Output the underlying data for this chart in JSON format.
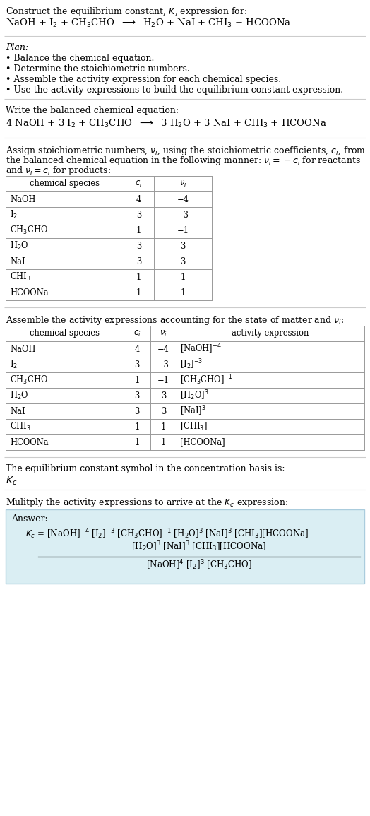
{
  "bg_color": "#ffffff",
  "text_color": "#000000",
  "title_line1": "Construct the equilibrium constant, $K$, expression for:",
  "reaction_unbalanced": "NaOH + I$_2$ + CH$_3$CHO  $\\longrightarrow$  H$_2$O + NaI + CHI$_3$ + HCOONa",
  "plan_header": "Plan:",
  "plan_items": [
    "\\u2022 Balance the chemical equation.",
    "\\u2022 Determine the stoichiometric numbers.",
    "\\u2022 Assemble the activity expression for each chemical species.",
    "\\u2022 Use the activity expressions to build the equilibrium constant expression."
  ],
  "balanced_header": "Write the balanced chemical equation:",
  "reaction_balanced": "4 NaOH + 3 I$_2$ + CH$_3$CHO  $\\longrightarrow$  3 H$_2$O + 3 NaI + CHI$_3$ + HCOONa",
  "stoich_intro1": "Assign stoichiometric numbers, $\\nu_i$, using the stoichiometric coefficients, $c_i$, from",
  "stoich_intro2": "the balanced chemical equation in the following manner: $\\nu_i = -c_i$ for reactants",
  "stoich_intro3": "and $\\nu_i = c_i$ for products:",
  "table1_headers": [
    "chemical species",
    "$c_i$",
    "$\\nu_i$"
  ],
  "table1_data": [
    [
      "NaOH",
      "4",
      "\\u22124"
    ],
    [
      "I$_2$",
      "3",
      "\\u22123"
    ],
    [
      "CH$_3$CHO",
      "1",
      "\\u22121"
    ],
    [
      "H$_2$O",
      "3",
      "3"
    ],
    [
      "NaI",
      "3",
      "3"
    ],
    [
      "CHI$_3$",
      "1",
      "1"
    ],
    [
      "HCOONa",
      "1",
      "1"
    ]
  ],
  "activity_intro": "Assemble the activity expressions accounting for the state of matter and $\\nu_i$:",
  "table2_headers": [
    "chemical species",
    "$c_i$",
    "$\\nu_i$",
    "activity expression"
  ],
  "table2_data": [
    [
      "NaOH",
      "4",
      "\\u22124",
      "[NaOH]$^{-4}$"
    ],
    [
      "I$_2$",
      "3",
      "\\u22123",
      "[I$_2$]$^{-3}$"
    ],
    [
      "CH$_3$CHO",
      "1",
      "\\u22121",
      "[CH$_3$CHO]$^{-1}$"
    ],
    [
      "H$_2$O",
      "3",
      "3",
      "[H$_2$O]$^3$"
    ],
    [
      "NaI",
      "3",
      "3",
      "[NaI]$^3$"
    ],
    [
      "CHI$_3$",
      "1",
      "1",
      "[CHI$_3$]"
    ],
    [
      "HCOONa",
      "1",
      "1",
      "[HCOONa]"
    ]
  ],
  "kc_intro": "The equilibrium constant symbol in the concentration basis is:",
  "kc_symbol": "$K_c$",
  "multiply_intro": "Mulitply the activity expressions to arrive at the $K_c$ expression:",
  "answer_label": "Answer:",
  "answer_line1a": "$K_c$ = [NaOH]$^{-4}$ [I$_2$]$^{-3}$ [CH$_3$CHO]$^{-1}$ [H$_2$O]$^3$ [NaI]$^3$ [CHI$_3$][HCOONa]",
  "answer_eq": "=",
  "answer_numerator": "[H$_2$O]$^3$ [NaI]$^3$ [CHI$_3$][HCOONa]",
  "answer_denominator": "[NaOH]$^4$ [I$_2$]$^3$ [CH$_3$CHO]",
  "answer_box_color": "#daeef3",
  "answer_box_border": "#aaccdd",
  "sep_color": "#cccccc",
  "table_line_color": "#999999"
}
